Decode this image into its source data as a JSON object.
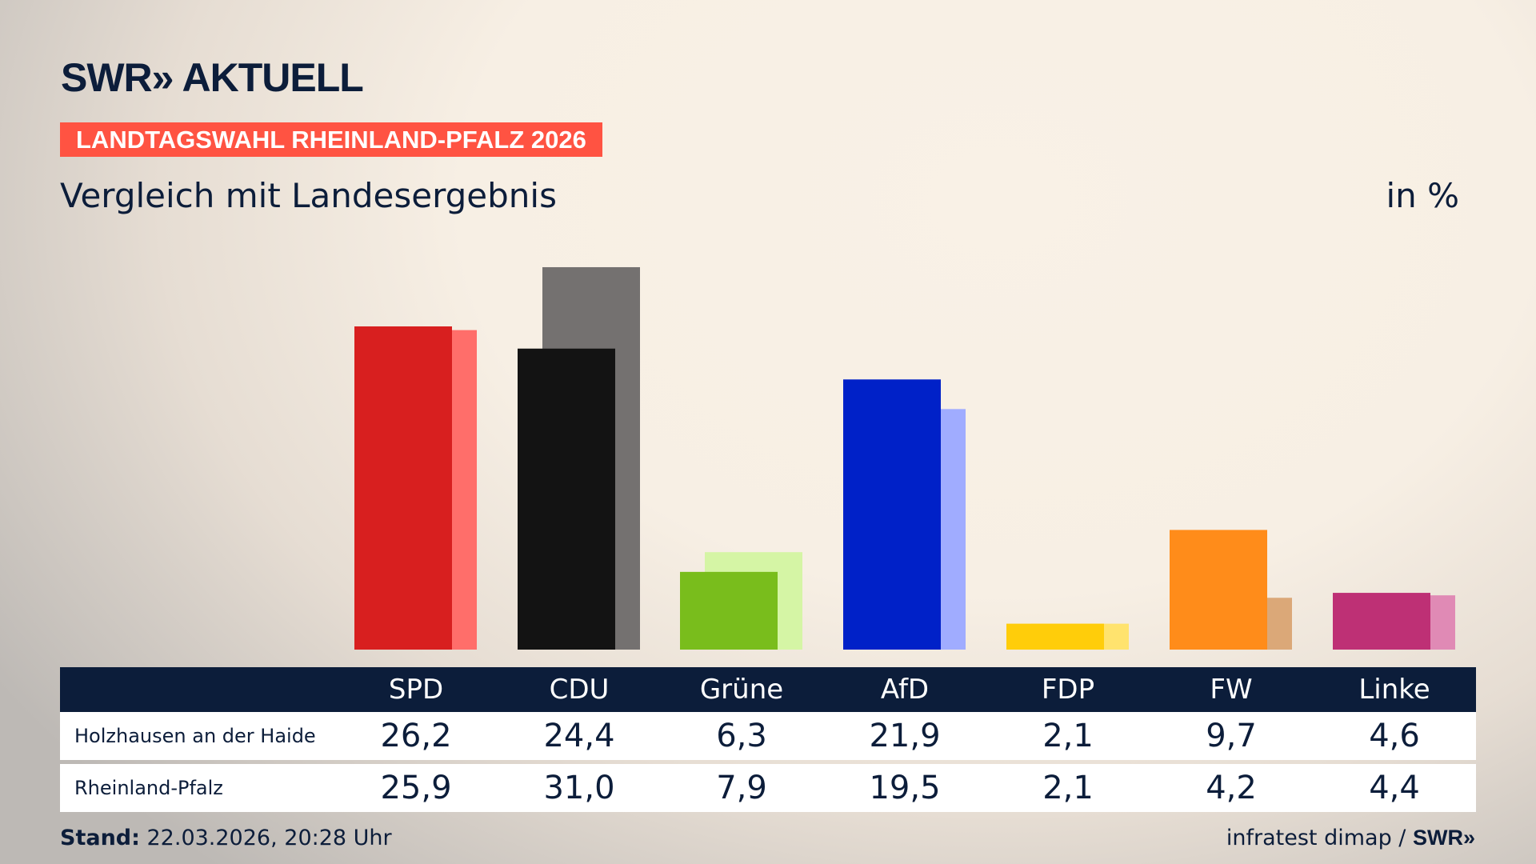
{
  "header": {
    "logo": "SWR» AKTUELL",
    "banner": "LANDTAGSWAHL RHEINLAND-PFALZ 2026",
    "subtitle": "Vergleich mit Landesergebnis",
    "unit": "in %"
  },
  "chart_data": {
    "type": "bar",
    "categories": [
      "SPD",
      "CDU",
      "Grüne",
      "AfD",
      "FDP",
      "FW",
      "Linke"
    ],
    "series": [
      {
        "name": "Holzhausen an der Haide",
        "values": [
          26.2,
          24.4,
          6.3,
          21.9,
          2.1,
          9.7,
          4.6
        ],
        "colors": [
          "#d81f1f",
          "#131313",
          "#79bd1c",
          "#0021c8",
          "#ffcd0a",
          "#ff8c1a",
          "#be3075"
        ]
      },
      {
        "name": "Rheinland-Pfalz",
        "values": [
          25.9,
          31.0,
          7.9,
          19.5,
          2.1,
          4.2,
          4.4
        ],
        "colors": [
          "#ff6e6a",
          "#747170",
          "#d5f5a5",
          "#a0acff",
          "#ffe36e",
          "#dba878",
          "#e08ab5"
        ]
      }
    ],
    "display": [
      [
        "26,2",
        "24,4",
        "6,3",
        "21,9",
        "2,1",
        "9,7",
        "4,6"
      ],
      [
        "25,9",
        "31,0",
        "7,9",
        "19,5",
        "2,1",
        "4,2",
        "4,4"
      ]
    ]
  },
  "footer": {
    "stand_label": "Stand:",
    "stand_value": " 22.03.2026, 20:28 Uhr",
    "source": "infratest dimap / ",
    "source_logo": "SWR»"
  }
}
